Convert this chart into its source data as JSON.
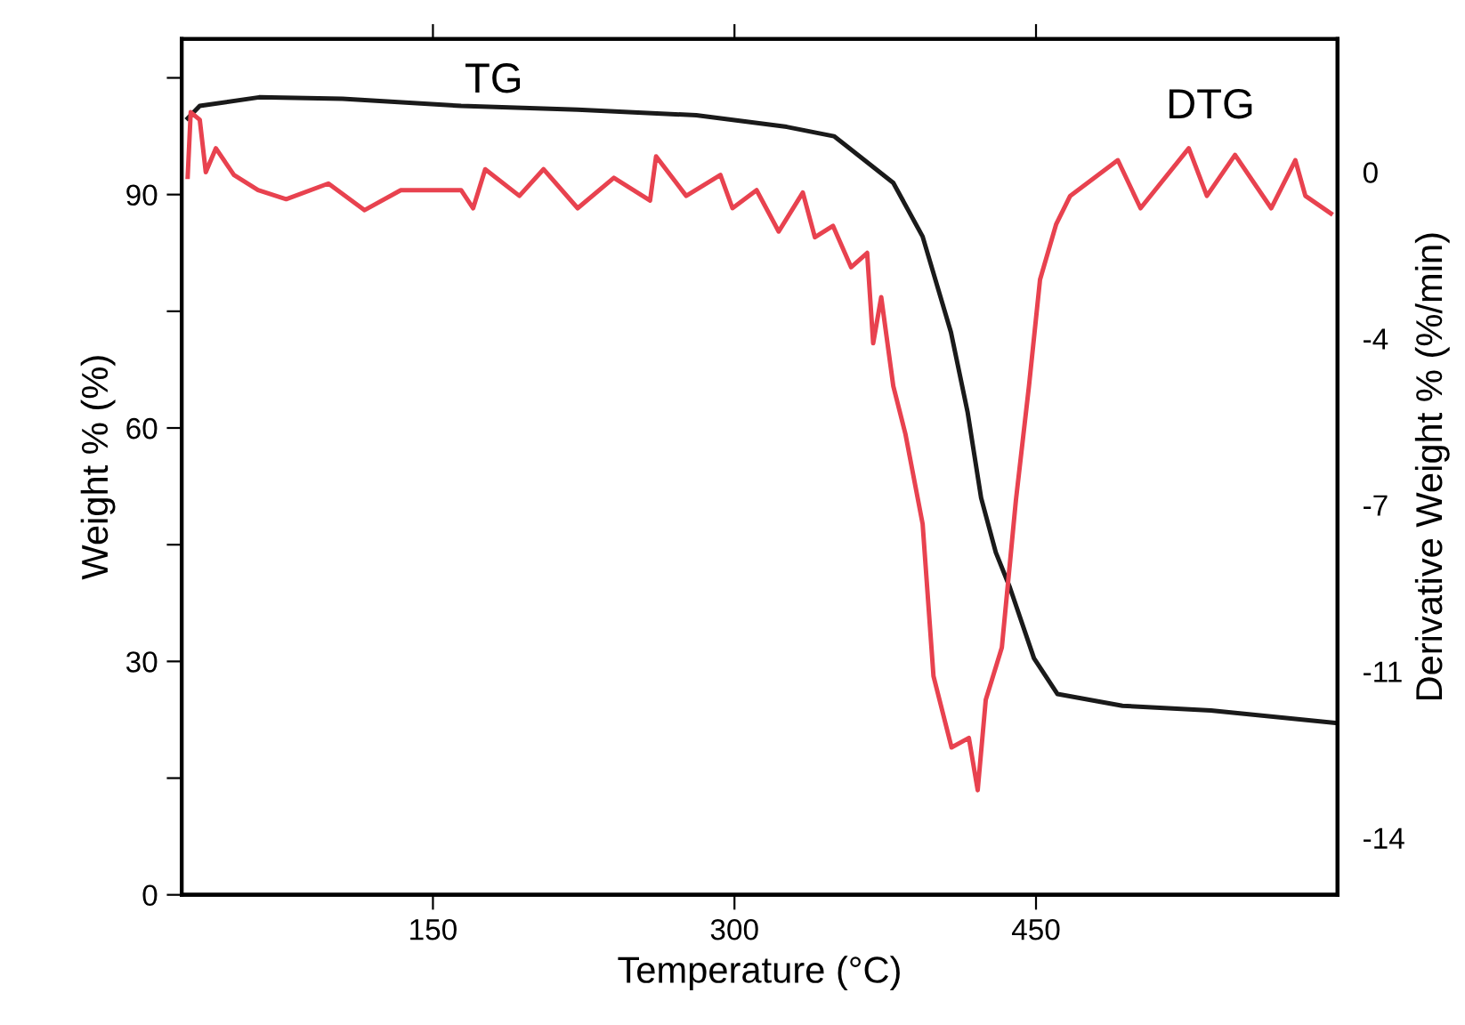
{
  "chart_data": {
    "type": "line",
    "xlabel": "Temperature (°C)",
    "ylabel": "Weight % (%)",
    "y2label": "Derivative Weight % (%/min)",
    "xlim": [
      25,
      600
    ],
    "xticks": [
      150,
      300,
      450
    ],
    "ylim": [
      0,
      110
    ],
    "yticks": [
      0,
      {
        "value": 15,
        "label": null
      },
      30,
      {
        "value": 45,
        "label": null
      },
      60,
      {
        "value": 75,
        "label": null
      },
      90,
      {
        "value": 105,
        "label": null
      }
    ],
    "y2lim": [
      -15.2,
      2.8
    ],
    "y2ticks": [
      0,
      {
        "value": -3.5,
        "label": "-4"
      },
      -7,
      {
        "value": -10.5,
        "label": "-11"
      },
      -14
    ],
    "grid": false,
    "marker": "none",
    "line_style": "solid",
    "annotations": [
      "TG",
      "DTG"
    ],
    "series": [
      {
        "color": "#1a1a1a",
        "x": [
          28,
          34,
          63.5,
          105,
          164,
          222,
          281,
          326,
          349.5,
          355,
          379,
          393.6,
          407.7,
          416,
          422.7,
          430,
          437,
          449,
          460.7,
          493,
          537,
          599
        ],
        "values": [
          99.8,
          101.4,
          102.5,
          102.3,
          101.4,
          100.9,
          100.2,
          98.7,
          97.5,
          96.4,
          91.5,
          84.6,
          72.3,
          62,
          51,
          44,
          39.5,
          30.4,
          25.8,
          24.3,
          23.7,
          22.1
        ]
      },
      {
        "color": "#e8424f",
        "axis": "y2",
        "x": [
          28,
          29.5,
          34,
          37,
          42,
          51,
          63,
          77,
          98,
          116,
          134,
          164,
          170,
          176,
          193,
          205,
          222,
          240,
          258,
          261,
          276,
          293,
          299,
          311,
          322,
          334,
          340,
          349,
          358,
          366,
          369,
          373,
          379,
          385,
          393.6,
          399,
          408,
          416.6,
          421,
          425,
          433,
          440,
          446.5,
          452,
          460,
          467,
          490.7,
          502,
          526,
          535,
          549,
          567,
          579,
          584,
          596.7
        ],
        "values": [
          -0.1,
          1.26,
          1.1,
          0,
          0.5,
          -0.06,
          -0.38,
          -0.57,
          -0.24,
          -0.8,
          -0.38,
          -0.38,
          -0.76,
          0.06,
          -0.5,
          0.06,
          -0.76,
          -0.12,
          -0.6,
          0.33,
          -0.5,
          -0.06,
          -0.76,
          -0.38,
          -1.25,
          -0.43,
          -1.37,
          -1.13,
          -2.0,
          -1.7,
          -3.6,
          -2.63,
          -4.5,
          -5.5,
          -7.4,
          -10.6,
          -12.1,
          -11.9,
          -13.0,
          -11.1,
          -10.0,
          -6.9,
          -4.5,
          -2.26,
          -1.1,
          -0.5,
          0.25,
          -0.76,
          0.5,
          -0.5,
          0.36,
          -0.76,
          0.25,
          -0.5,
          -0.87
        ]
      }
    ]
  }
}
